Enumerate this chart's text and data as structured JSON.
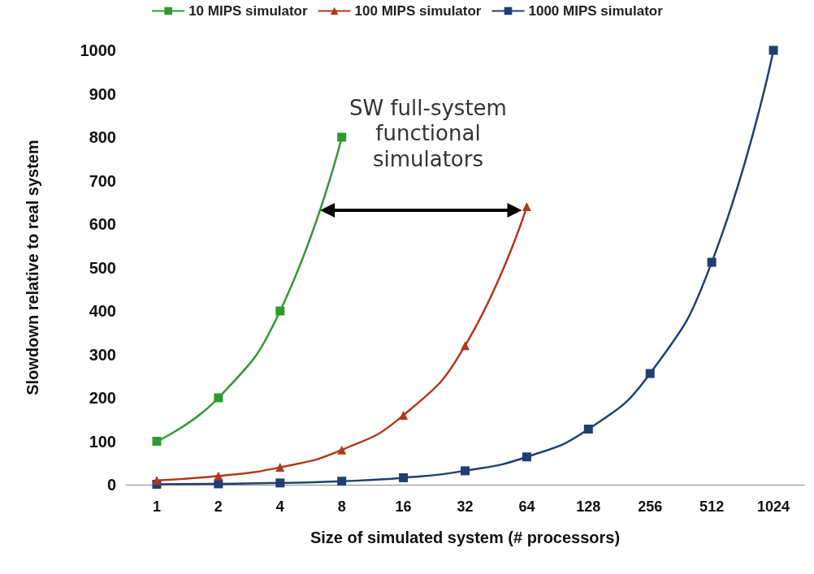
{
  "chart_data": {
    "type": "line",
    "xlabel": "Size of simulated system (# processors)",
    "ylabel": "Slowdown relative to real system",
    "categories": [
      "1",
      "2",
      "4",
      "8",
      "16",
      "32",
      "64",
      "128",
      "256",
      "512",
      "1024"
    ],
    "series": [
      {
        "name": "10 MIPS simulator",
        "color": "#2e9a2e",
        "marker": "square",
        "values": [
          100,
          200,
          400,
          800,
          null,
          null,
          null,
          null,
          null,
          null,
          null
        ]
      },
      {
        "name": "100 MIPS simulator",
        "color": "#b0391b",
        "marker": "triangle",
        "values": [
          10,
          20,
          40,
          80,
          160,
          320,
          640,
          null,
          null,
          null,
          null
        ]
      },
      {
        "name": "1000 MIPS simulator",
        "color": "#1f3f73",
        "marker": "square",
        "values": [
          1,
          2,
          4,
          8,
          16,
          32,
          64,
          128,
          256,
          512,
          1000
        ]
      }
    ],
    "ylim": [
      0,
      1000
    ],
    "yticks": [
      0,
      100,
      200,
      300,
      400,
      500,
      600,
      700,
      800,
      900,
      1000
    ],
    "grid": false,
    "legend": "top",
    "annotations": [
      "SW full-system functional simulators"
    ]
  }
}
